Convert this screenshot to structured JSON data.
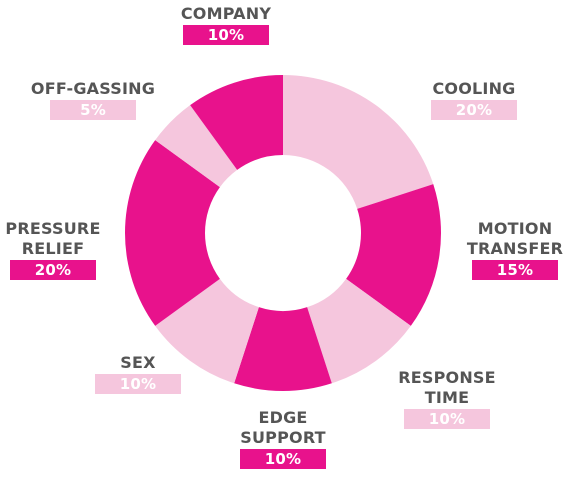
{
  "chart_data": {
    "type": "donut",
    "title": "",
    "categories": [
      "COOLING",
      "MOTION TRANSFER",
      "RESPONSE TIME",
      "EDGE SUPPORT",
      "SEX",
      "PRESSURE RELIEF",
      "OFF-GASSING",
      "COMPANY"
    ],
    "values": [
      20,
      15,
      10,
      10,
      10,
      20,
      5,
      10
    ],
    "value_labels": [
      "20%",
      "15%",
      "10%",
      "10%",
      "10%",
      "20%",
      "5%",
      "10%"
    ],
    "slice_tones": [
      "light",
      "dark",
      "light",
      "dark",
      "light",
      "dark",
      "light",
      "dark"
    ],
    "colors": {
      "dark": "#e8128c",
      "light": "#f5c6dd",
      "label_text": "#555555"
    }
  },
  "labels": {
    "cooling": {
      "name": "COOLING",
      "pct": "20%"
    },
    "motion_transfer": {
      "name": "MOTION\nTRANSFER",
      "pct": "15%"
    },
    "response_time": {
      "name": "RESPONSE\nTIME",
      "pct": "10%"
    },
    "edge_support": {
      "name": "EDGE\nSUPPORT",
      "pct": "10%"
    },
    "sex": {
      "name": "SEX",
      "pct": "10%"
    },
    "pressure_relief": {
      "name": "PRESSURE\nRELIEF",
      "pct": "20%"
    },
    "off_gassing": {
      "name": "OFF-GASSING",
      "pct": "5%"
    },
    "company": {
      "name": "COMPANY",
      "pct": "10%"
    }
  }
}
